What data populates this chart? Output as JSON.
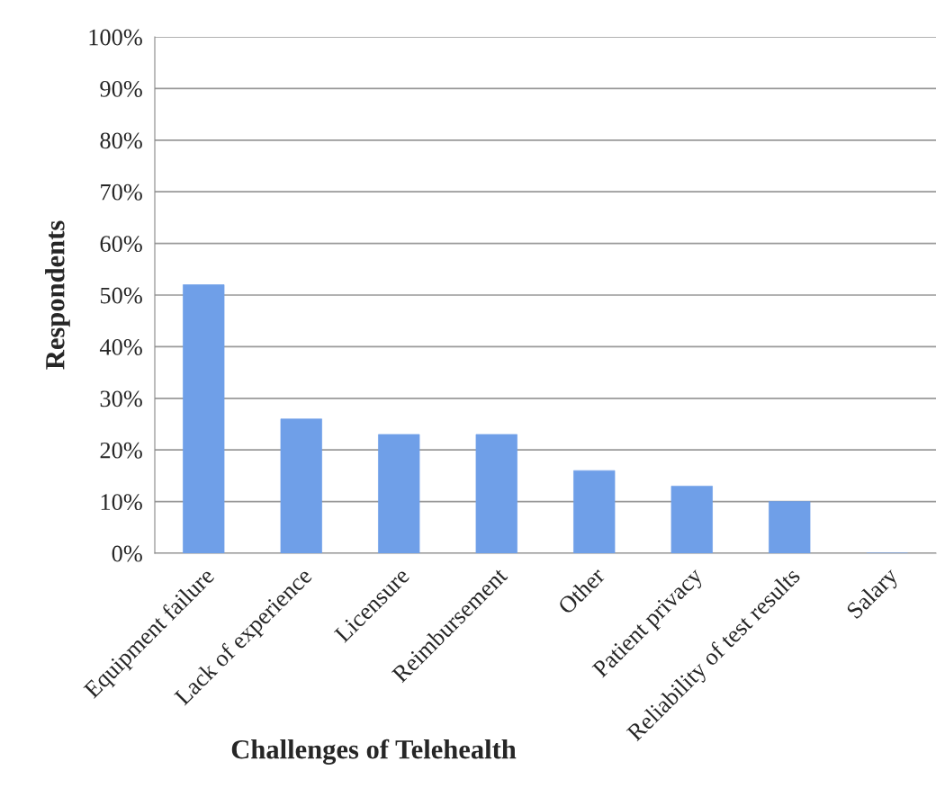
{
  "chart_data": {
    "type": "bar",
    "xlabel": "Challenges of Telehealth",
    "ylabel": "Respondents",
    "categories": [
      "Equipment failure",
      "Lack of experience",
      "Licensure",
      "Reimbursement",
      "Other",
      "Patient privacy",
      "Reliability of test results",
      "Salary"
    ],
    "values": [
      52,
      26,
      23,
      23,
      16,
      13,
      10,
      0
    ],
    "color": "#6f9fe8",
    "ylim": [
      0,
      100
    ],
    "yticks": [
      {
        "value": 0,
        "label": "0%"
      },
      {
        "value": 10,
        "label": "10%"
      },
      {
        "value": 20,
        "label": "20%"
      },
      {
        "value": 30,
        "label": "30%"
      },
      {
        "value": 40,
        "label": "40%"
      },
      {
        "value": 50,
        "label": "50%"
      },
      {
        "value": 60,
        "label": "60%"
      },
      {
        "value": 70,
        "label": "70%"
      },
      {
        "value": 80,
        "label": "80%"
      },
      {
        "value": 90,
        "label": "90%"
      },
      {
        "value": 100,
        "label": "100%"
      }
    ],
    "grid": "y",
    "legend": false
  }
}
